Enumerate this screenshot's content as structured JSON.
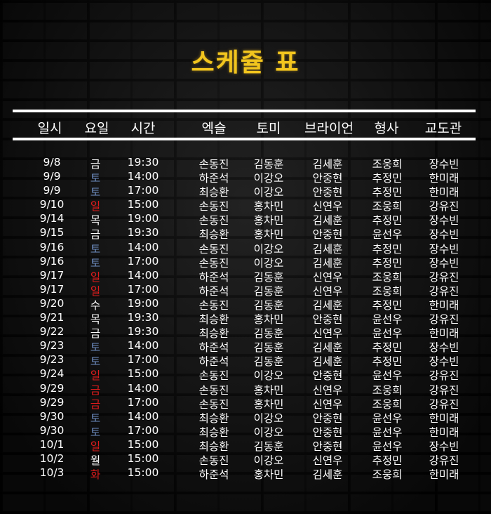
{
  "title": "스케쥴 표",
  "colors": {
    "title": "#f2c51e",
    "saturday": "#6f8fc4",
    "sunday": "#e11c1c",
    "weekday": "#ffffff"
  },
  "headers": [
    "일시",
    "요일",
    "시간",
    "엑슬",
    "토미",
    "브라이언",
    "형사",
    "교도관"
  ],
  "rows": [
    {
      "date": "9/8",
      "day": "금",
      "day_type": "weekday",
      "time": "19:30",
      "ex": "손동진",
      "tomi": "김동훈",
      "brian": "김세훈",
      "detective": "조웅희",
      "warden": "장수빈"
    },
    {
      "date": "9/9",
      "day": "토",
      "day_type": "saturday",
      "time": "14:00",
      "ex": "하준석",
      "tomi": "이강오",
      "brian": "안중현",
      "detective": "추정민",
      "warden": "한미래"
    },
    {
      "date": "9/9",
      "day": "토",
      "day_type": "saturday",
      "time": "17:00",
      "ex": "최승환",
      "tomi": "이강오",
      "brian": "안중현",
      "detective": "추정민",
      "warden": "한미래"
    },
    {
      "date": "9/10",
      "day": "일",
      "day_type": "sunday",
      "time": "15:00",
      "ex": "손동진",
      "tomi": "홍차민",
      "brian": "신연우",
      "detective": "조웅희",
      "warden": "강유진"
    },
    {
      "date": "9/14",
      "day": "목",
      "day_type": "weekday",
      "time": "19:00",
      "ex": "손동진",
      "tomi": "홍차민",
      "brian": "김세훈",
      "detective": "추정민",
      "warden": "장수빈"
    },
    {
      "date": "9/15",
      "day": "금",
      "day_type": "weekday",
      "time": "19:30",
      "ex": "최승환",
      "tomi": "홍차민",
      "brian": "안중현",
      "detective": "윤선우",
      "warden": "장수빈"
    },
    {
      "date": "9/16",
      "day": "토",
      "day_type": "saturday",
      "time": "14:00",
      "ex": "손동진",
      "tomi": "이강오",
      "brian": "김세훈",
      "detective": "추정민",
      "warden": "장수빈"
    },
    {
      "date": "9/16",
      "day": "토",
      "day_type": "saturday",
      "time": "17:00",
      "ex": "손동진",
      "tomi": "이강오",
      "brian": "김세훈",
      "detective": "추정민",
      "warden": "장수빈"
    },
    {
      "date": "9/17",
      "day": "일",
      "day_type": "sunday",
      "time": "14:00",
      "ex": "하준석",
      "tomi": "김동훈",
      "brian": "신연우",
      "detective": "조웅희",
      "warden": "강유진"
    },
    {
      "date": "9/17",
      "day": "일",
      "day_type": "sunday",
      "time": "17:00",
      "ex": "하준석",
      "tomi": "김동훈",
      "brian": "신연우",
      "detective": "조웅희",
      "warden": "강유진"
    },
    {
      "date": "9/20",
      "day": "수",
      "day_type": "weekday",
      "time": "19:00",
      "ex": "손동진",
      "tomi": "김동훈",
      "brian": "김세훈",
      "detective": "추정민",
      "warden": "한미래"
    },
    {
      "date": "9/21",
      "day": "목",
      "day_type": "weekday",
      "time": "19:30",
      "ex": "최승환",
      "tomi": "홍차민",
      "brian": "안중현",
      "detective": "윤선우",
      "warden": "강유진"
    },
    {
      "date": "9/22",
      "day": "금",
      "day_type": "weekday",
      "time": "19:30",
      "ex": "최승환",
      "tomi": "김동훈",
      "brian": "신연우",
      "detective": "윤선우",
      "warden": "한미래"
    },
    {
      "date": "9/23",
      "day": "토",
      "day_type": "saturday",
      "time": "14:00",
      "ex": "하준석",
      "tomi": "김동훈",
      "brian": "김세훈",
      "detective": "추정민",
      "warden": "장수빈"
    },
    {
      "date": "9/23",
      "day": "토",
      "day_type": "saturday",
      "time": "17:00",
      "ex": "하준석",
      "tomi": "김동훈",
      "brian": "김세훈",
      "detective": "추정민",
      "warden": "장수빈"
    },
    {
      "date": "9/24",
      "day": "일",
      "day_type": "sunday",
      "time": "15:00",
      "ex": "손동진",
      "tomi": "이강오",
      "brian": "안중현",
      "detective": "윤선우",
      "warden": "강유진"
    },
    {
      "date": "9/29",
      "day": "금",
      "day_type": "sunday",
      "time": "14:00",
      "ex": "손동진",
      "tomi": "홍차민",
      "brian": "신연우",
      "detective": "조웅희",
      "warden": "강유진"
    },
    {
      "date": "9/29",
      "day": "금",
      "day_type": "sunday",
      "time": "17:00",
      "ex": "손동진",
      "tomi": "홍차민",
      "brian": "신연우",
      "detective": "조웅희",
      "warden": "강유진"
    },
    {
      "date": "9/30",
      "day": "토",
      "day_type": "saturday",
      "time": "14:00",
      "ex": "최승환",
      "tomi": "이강오",
      "brian": "안중현",
      "detective": "윤선우",
      "warden": "한미래"
    },
    {
      "date": "9/30",
      "day": "토",
      "day_type": "saturday",
      "time": "17:00",
      "ex": "최승환",
      "tomi": "이강오",
      "brian": "안중현",
      "detective": "윤선우",
      "warden": "한미래"
    },
    {
      "date": "10/1",
      "day": "일",
      "day_type": "sunday",
      "time": "15:00",
      "ex": "최승환",
      "tomi": "김동훈",
      "brian": "안중현",
      "detective": "윤선우",
      "warden": "장수빈"
    },
    {
      "date": "10/2",
      "day": "월",
      "day_type": "weekday",
      "time": "15:00",
      "ex": "손동진",
      "tomi": "이강오",
      "brian": "신연우",
      "detective": "추정민",
      "warden": "강유진"
    },
    {
      "date": "10/3",
      "day": "화",
      "day_type": "sunday",
      "time": "15:00",
      "ex": "하준석",
      "tomi": "홍차민",
      "brian": "김세훈",
      "detective": "조웅희",
      "warden": "한미래"
    }
  ]
}
